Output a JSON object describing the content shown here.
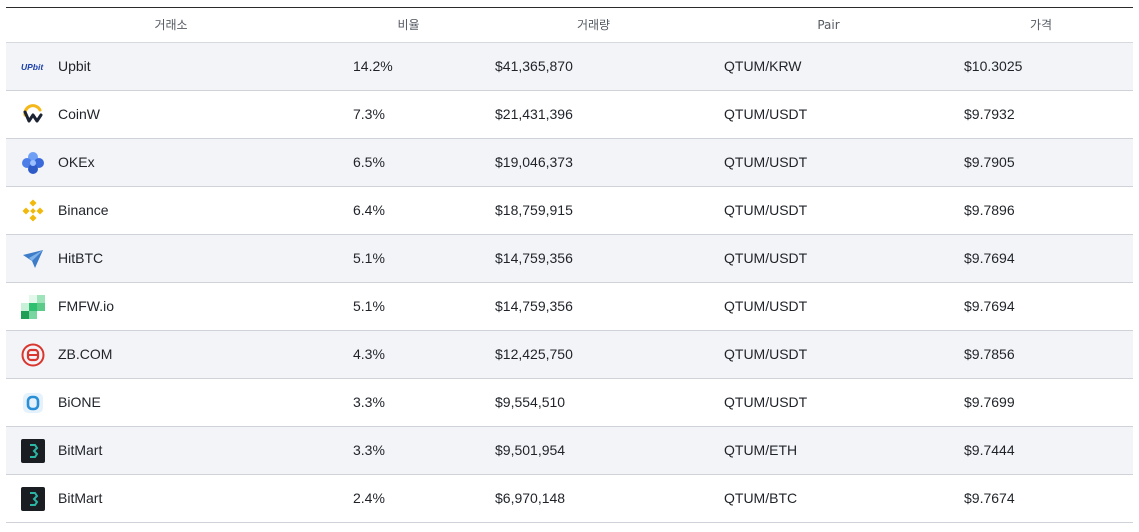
{
  "table": {
    "headers": {
      "exchange": "거래소",
      "ratio": "비율",
      "volume": "거래량",
      "pair": "Pair",
      "price": "가격"
    },
    "rows": [
      {
        "exchange": "Upbit",
        "icon": "upbit-logo-icon",
        "ratio": "14.2%",
        "volume": "$41,365,870",
        "pair": "QTUM/KRW",
        "price": "$10.3025"
      },
      {
        "exchange": "CoinW",
        "icon": "coinw-logo-icon",
        "ratio": "7.3%",
        "volume": "$21,431,396",
        "pair": "QTUM/USDT",
        "price": "$9.7932"
      },
      {
        "exchange": "OKEx",
        "icon": "okex-logo-icon",
        "ratio": "6.5%",
        "volume": "$19,046,373",
        "pair": "QTUM/USDT",
        "price": "$9.7905"
      },
      {
        "exchange": "Binance",
        "icon": "binance-logo-icon",
        "ratio": "6.4%",
        "volume": "$18,759,915",
        "pair": "QTUM/USDT",
        "price": "$9.7896"
      },
      {
        "exchange": "HitBTC",
        "icon": "hitbtc-logo-icon",
        "ratio": "5.1%",
        "volume": "$14,759,356",
        "pair": "QTUM/USDT",
        "price": "$9.7694"
      },
      {
        "exchange": "FMFW.io",
        "icon": "fmfw-logo-icon",
        "ratio": "5.1%",
        "volume": "$14,759,356",
        "pair": "QTUM/USDT",
        "price": "$9.7694"
      },
      {
        "exchange": "ZB.COM",
        "icon": "zbcom-logo-icon",
        "ratio": "4.3%",
        "volume": "$12,425,750",
        "pair": "QTUM/USDT",
        "price": "$9.7856"
      },
      {
        "exchange": "BiONE",
        "icon": "bione-logo-icon",
        "ratio": "3.3%",
        "volume": "$9,554,510",
        "pair": "QTUM/USDT",
        "price": "$9.7699"
      },
      {
        "exchange": "BitMart",
        "icon": "bitmart-logo-icon",
        "ratio": "3.3%",
        "volume": "$9,501,954",
        "pair": "QTUM/ETH",
        "price": "$9.7444"
      },
      {
        "exchange": "BitMart",
        "icon": "bitmart-logo-icon",
        "ratio": "2.4%",
        "volume": "$6,970,148",
        "pair": "QTUM/BTC",
        "price": "$9.7674"
      }
    ]
  },
  "logos": {
    "upbit_text": "UPbit"
  },
  "colors": {
    "row_alt": "#f3f4f8",
    "border": "#cfd3d9",
    "upbit_blue": "#1a3fa8",
    "coinw_yellow": "#f5b81b",
    "okex_blue": "#4d7ee8",
    "binance_yellow": "#f0b90b",
    "hitbtc_blue": "#3d7cc9",
    "fmfw_green": "#2fbf71",
    "zb_red": "#d9362f",
    "bione_blue": "#2a8fd6",
    "bitmart_dark": "#1a1d21"
  }
}
